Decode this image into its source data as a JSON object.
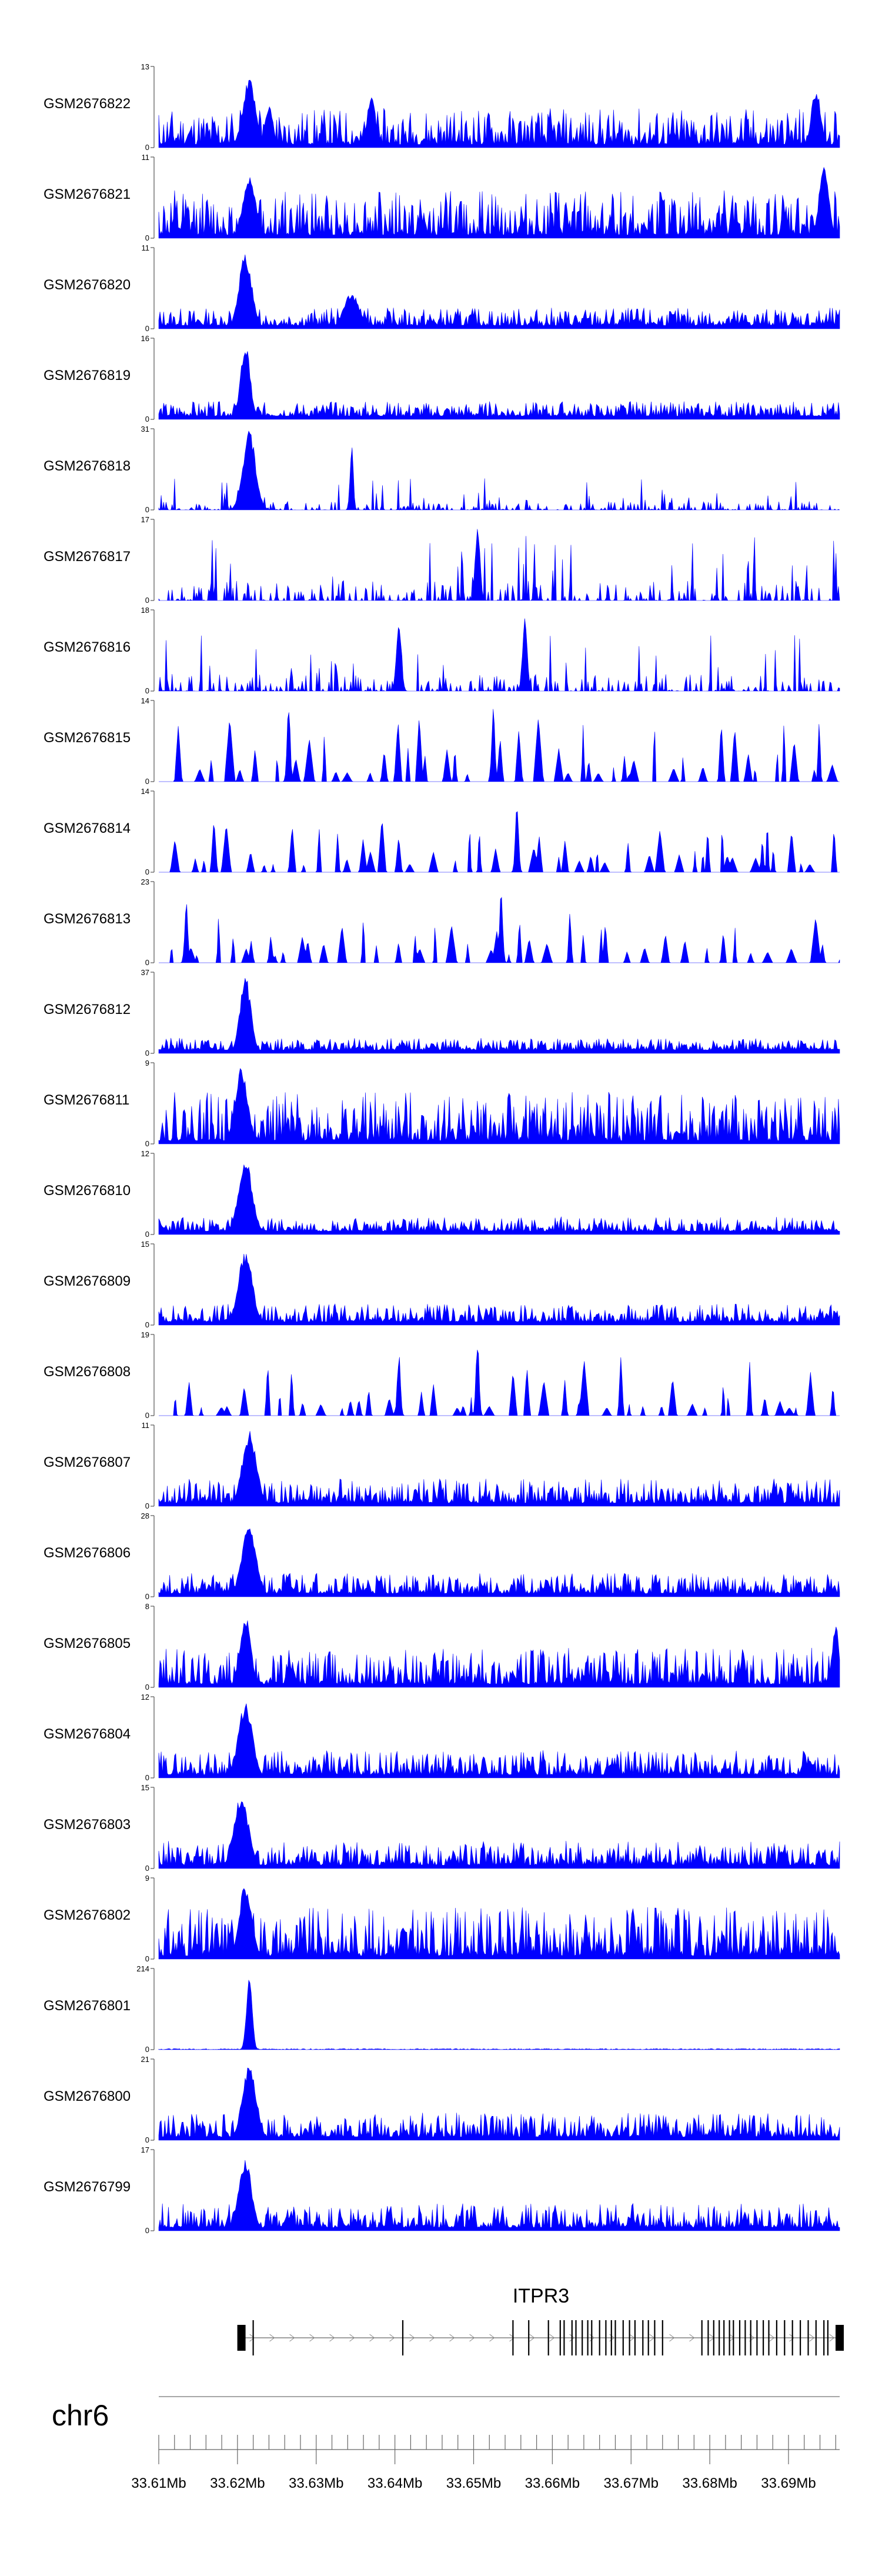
{
  "chart_data": {
    "type": "area",
    "chromosome": "chr6",
    "x_unit": "Mb",
    "xlim": [
      33.61,
      33.6965
    ],
    "x_ticks": [
      33.61,
      33.62,
      33.63,
      33.64,
      33.65,
      33.66,
      33.67,
      33.68,
      33.69
    ],
    "x_tick_labels": [
      "33.61Mb",
      "33.62Mb",
      "33.63Mb",
      "33.64Mb",
      "33.65Mb",
      "33.66Mb",
      "33.67Mb",
      "33.68Mb",
      "33.69Mb"
    ],
    "series_color": "#0000ff",
    "series": [
      {
        "name": "GSM2676822",
        "ymax": 13,
        "profile": "dense",
        "seed": 11,
        "peak_scale": 0.45,
        "peaks": [
          [
            33.6215,
            0.0008,
            0.9
          ],
          [
            33.624,
            0.0005,
            0.55
          ],
          [
            33.637,
            0.0005,
            0.7
          ],
          [
            33.6935,
            0.0006,
            0.75
          ]
        ]
      },
      {
        "name": "GSM2676821",
        "ymax": 11,
        "profile": "dense",
        "seed": 12,
        "peak_scale": 0.55,
        "peaks": [
          [
            33.6215,
            0.0008,
            0.8
          ],
          [
            33.6945,
            0.0006,
            0.95
          ]
        ]
      },
      {
        "name": "GSM2676820",
        "ymax": 11,
        "profile": "dense",
        "seed": 13,
        "peak_scale": 0.22,
        "peaks": [
          [
            33.621,
            0.0008,
            0.95
          ],
          [
            33.6345,
            0.001,
            0.45
          ]
        ]
      },
      {
        "name": "GSM2676819",
        "ymax": 16,
        "profile": "dense",
        "seed": 14,
        "peak_scale": 0.18,
        "peaks": [
          [
            33.621,
            0.0006,
            0.95
          ]
        ]
      },
      {
        "name": "GSM2676818",
        "ymax": 31,
        "profile": "sparse",
        "seed": 15,
        "peak_scale": 0.3,
        "peaks": [
          [
            33.6215,
            0.0008,
            0.98
          ],
          [
            33.6345,
            0.0002,
            0.85
          ]
        ]
      },
      {
        "name": "GSM2676817",
        "ymax": 17,
        "profile": "sparse",
        "seed": 16,
        "peak_scale": 0.7,
        "peaks": [
          [
            33.6505,
            0.0003,
            0.98
          ]
        ]
      },
      {
        "name": "GSM2676816",
        "ymax": 18,
        "profile": "sparse",
        "seed": 17,
        "peak_scale": 0.6,
        "peaks": [
          [
            33.6405,
            0.0003,
            0.95
          ],
          [
            33.6565,
            0.0003,
            0.9
          ]
        ]
      },
      {
        "name": "GSM2676815",
        "ymax": 14,
        "profile": "triangles",
        "seed": 18,
        "peak_scale": 0.75,
        "peaks": [
          [
            33.6265,
            0.0002,
            0.98
          ],
          [
            33.6525,
            0.0002,
            0.95
          ]
        ]
      },
      {
        "name": "GSM2676814",
        "ymax": 14,
        "profile": "triangles",
        "seed": 19,
        "peak_scale": 0.6,
        "peaks": [
          [
            33.6555,
            0.0002,
            0.95
          ]
        ]
      },
      {
        "name": "GSM2676813",
        "ymax": 23,
        "profile": "triangles",
        "seed": 20,
        "peak_scale": 0.55,
        "peaks": [
          [
            33.6535,
            0.0002,
            0.92
          ],
          [
            33.6135,
            0.0002,
            0.8
          ]
        ]
      },
      {
        "name": "GSM2676812",
        "ymax": 37,
        "profile": "dense",
        "seed": 21,
        "peak_scale": 0.15,
        "peaks": [
          [
            33.621,
            0.0007,
            0.97
          ]
        ]
      },
      {
        "name": "GSM2676811",
        "ymax": 9,
        "profile": "dense",
        "seed": 22,
        "peak_scale": 0.6,
        "peaks": [
          [
            33.6205,
            0.0008,
            0.95
          ]
        ]
      },
      {
        "name": "GSM2676810",
        "ymax": 12,
        "profile": "dense",
        "seed": 23,
        "peak_scale": 0.18,
        "peaks": [
          [
            33.621,
            0.0009,
            0.93
          ]
        ]
      },
      {
        "name": "GSM2676809",
        "ymax": 15,
        "profile": "dense",
        "seed": 24,
        "peak_scale": 0.22,
        "peaks": [
          [
            33.621,
            0.0009,
            0.93
          ]
        ]
      },
      {
        "name": "GSM2676808",
        "ymax": 19,
        "profile": "triangles",
        "seed": 25,
        "peak_scale": 0.65,
        "peaks": [
          [
            33.6505,
            0.0002,
            0.95
          ],
          [
            33.6405,
            0.0002,
            0.8
          ]
        ]
      },
      {
        "name": "GSM2676807",
        "ymax": 11,
        "profile": "dense",
        "seed": 26,
        "peak_scale": 0.3,
        "peaks": [
          [
            33.6215,
            0.0009,
            0.95
          ]
        ]
      },
      {
        "name": "GSM2676806",
        "ymax": 28,
        "profile": "dense",
        "seed": 27,
        "peak_scale": 0.25,
        "peaks": [
          [
            33.6215,
            0.0009,
            0.92
          ]
        ]
      },
      {
        "name": "GSM2676805",
        "ymax": 8,
        "profile": "dense",
        "seed": 28,
        "peak_scale": 0.45,
        "peaks": [
          [
            33.621,
            0.0007,
            0.9
          ],
          [
            33.696,
            0.0004,
            0.8
          ]
        ]
      },
      {
        "name": "GSM2676804",
        "ymax": 12,
        "profile": "dense",
        "seed": 29,
        "peak_scale": 0.3,
        "peaks": [
          [
            33.621,
            0.0009,
            0.93
          ]
        ]
      },
      {
        "name": "GSM2676803",
        "ymax": 15,
        "profile": "dense",
        "seed": 30,
        "peak_scale": 0.3,
        "peaks": [
          [
            33.6205,
            0.0009,
            0.93
          ]
        ]
      },
      {
        "name": "GSM2676802",
        "ymax": 9,
        "profile": "dense",
        "seed": 31,
        "peak_scale": 0.6,
        "peaks": [
          [
            33.621,
            0.0008,
            0.95
          ]
        ]
      },
      {
        "name": "GSM2676801",
        "ymax": 214,
        "profile": "flat",
        "seed": 32,
        "peak_scale": 0.01,
        "peaks": [
          [
            33.6215,
            0.00035,
            0.98
          ]
        ]
      },
      {
        "name": "GSM2676800",
        "ymax": 21,
        "profile": "dense",
        "seed": 33,
        "peak_scale": 0.3,
        "peaks": [
          [
            33.6215,
            0.0009,
            0.92
          ]
        ]
      },
      {
        "name": "GSM2676799",
        "ymax": 17,
        "profile": "dense",
        "seed": 34,
        "peak_scale": 0.3,
        "peaks": [
          [
            33.621,
            0.0008,
            0.92
          ]
        ]
      }
    ],
    "gene": {
      "name": "ITPR3",
      "strand": "+",
      "start": 33.6205,
      "end": 33.6965,
      "exons": [
        33.6205,
        33.622,
        33.641,
        33.655,
        33.657,
        33.6595,
        33.661,
        33.6615,
        33.6625,
        33.663,
        33.6638,
        33.6645,
        33.665,
        33.666,
        33.6668,
        33.6675,
        33.668,
        33.669,
        33.6698,
        33.6705,
        33.6715,
        33.6722,
        33.673,
        33.674,
        33.679,
        33.6798,
        33.6805,
        33.6812,
        33.6818,
        33.6825,
        33.683,
        33.6838,
        33.6845,
        33.6852,
        33.686,
        33.6868,
        33.6875,
        33.6885,
        33.6895,
        33.6905,
        33.6915,
        33.6925,
        33.6935,
        33.6945,
        33.695,
        33.6965
      ]
    }
  }
}
